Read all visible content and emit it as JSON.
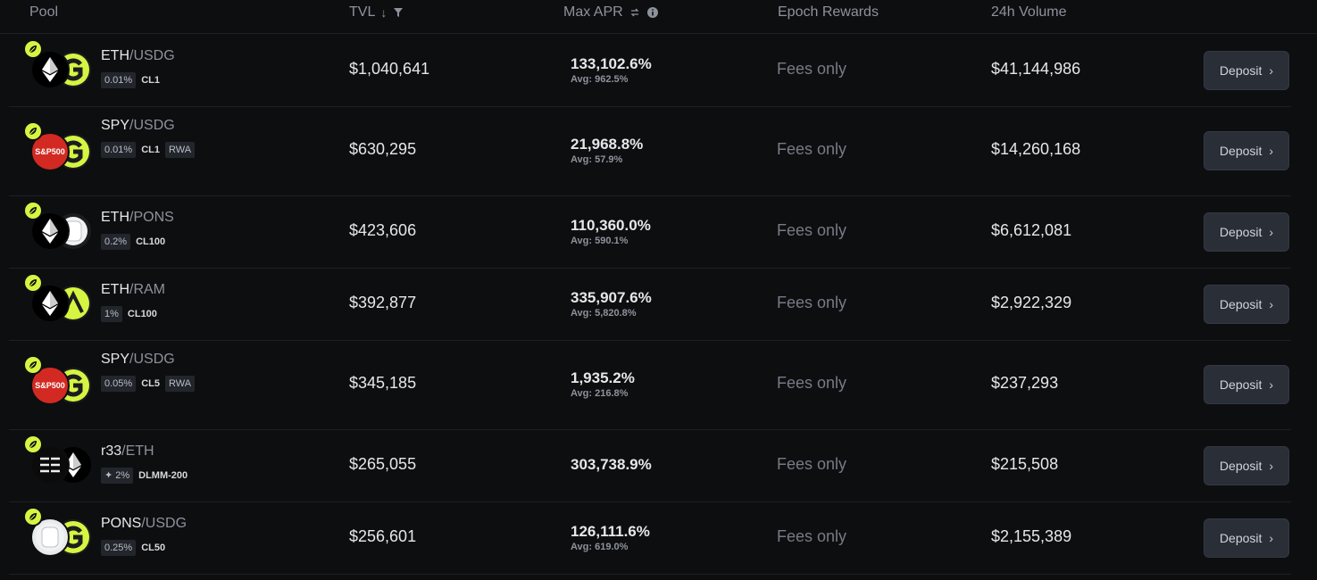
{
  "header": {
    "pool": "Pool",
    "tvl": "TVL",
    "max_apr": "Max APR",
    "epoch_rewards": "Epoch Rewards",
    "volume": "24h Volume"
  },
  "colors": {
    "accent": "#d5f542",
    "background": "#0d0e10",
    "deposit_bg": "#2a2f37",
    "sp_red": "#d22a22"
  },
  "rows": [
    {
      "base": "ETH",
      "sep": "/",
      "quote": "USDG",
      "tags": [
        "0.01%",
        "CL1"
      ],
      "tvl": "$1,040,641",
      "apr": "133,102.6%",
      "avg": "Avg: 962.5%",
      "epoch": "Fees only",
      "volume": "$41,144,986",
      "deposit": "Deposit",
      "logo_a": "eth-icon",
      "logo_b": "usdg-icon"
    },
    {
      "base": "SPY",
      "sep": "/",
      "quote": "USDG",
      "tags": [
        "0.01%",
        "CL1",
        "RWA"
      ],
      "tvl": "$630,295",
      "apr": "21,968.8%",
      "avg": "Avg: 57.9%",
      "epoch": "Fees only",
      "volume": "$14,260,168",
      "deposit": "Deposit",
      "logo_a_text": "S&P500",
      "logo_b": "usdg-icon"
    },
    {
      "base": "ETH",
      "sep": "/",
      "quote": "PONS",
      "tags": [
        "0.2%",
        "CL100"
      ],
      "tvl": "$423,606",
      "apr": "110,360.0%",
      "avg": "Avg: 590.1%",
      "epoch": "Fees only",
      "volume": "$6,612,081",
      "deposit": "Deposit",
      "logo_a": "eth-icon",
      "logo_b": "pons-icon"
    },
    {
      "base": "ETH",
      "sep": "/",
      "quote": "RAM",
      "tags": [
        "1%",
        "CL100"
      ],
      "tvl": "$392,877",
      "apr": "335,907.6%",
      "avg": "Avg: 5,820.8%",
      "epoch": "Fees only",
      "volume": "$2,922,329",
      "deposit": "Deposit",
      "logo_a": "eth-icon",
      "logo_b": "ram-icon"
    },
    {
      "base": "SPY",
      "sep": "/",
      "quote": "USDG",
      "tags": [
        "0.05%",
        "CL5",
        "RWA"
      ],
      "tvl": "$345,185",
      "apr": "1,935.2%",
      "avg": "Avg: 216.8%",
      "epoch": "Fees only",
      "volume": "$237,293",
      "deposit": "Deposit",
      "logo_a_text": "S&P500",
      "logo_b": "usdg-icon"
    },
    {
      "base": "r33",
      "sep": "/",
      "quote": "ETH",
      "tags": [
        "2%",
        "DLMM-200"
      ],
      "tvl": "$265,055",
      "apr": "303,738.9%",
      "avg": "",
      "epoch": "Fees only",
      "volume": "$215,508",
      "deposit": "Deposit",
      "logo_a": "r33-icon",
      "logo_b": "eth-icon"
    },
    {
      "base": "PONS",
      "sep": "/",
      "quote": "USDG",
      "tags": [
        "0.25%",
        "CL50"
      ],
      "tvl": "$256,601",
      "apr": "126,111.6%",
      "avg": "Avg: 619.0%",
      "epoch": "Fees only",
      "volume": "$2,155,389",
      "deposit": "Deposit",
      "logo_a": "pons-icon",
      "logo_b": "usdg-icon"
    }
  ]
}
